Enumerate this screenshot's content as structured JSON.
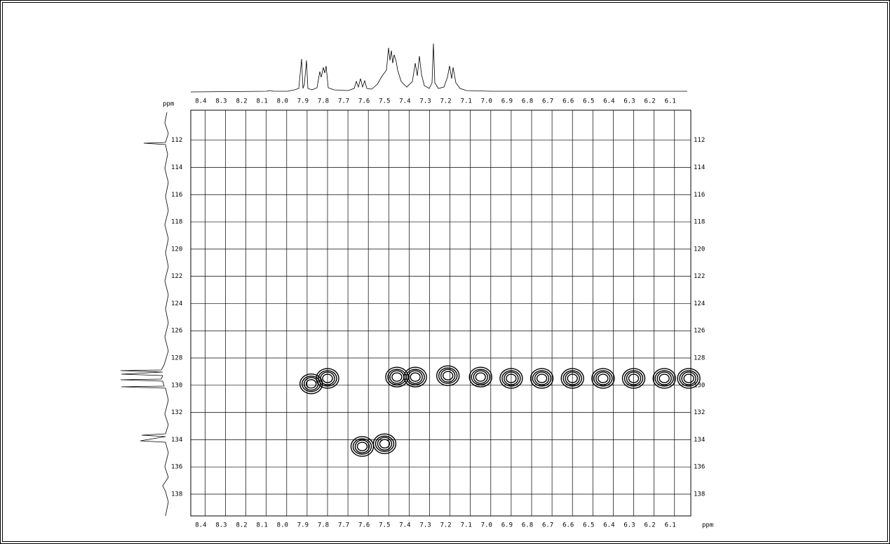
{
  "chart_data": {
    "type": "contour",
    "x_label": "ppm",
    "y_label": "ppm",
    "xlim": [
      8.47,
      6.02
    ],
    "xticks": [
      {
        "value": 8.4,
        "label": "8.4"
      },
      {
        "value": 8.3,
        "label": "8.3"
      },
      {
        "value": 8.2,
        "label": "8.2"
      },
      {
        "value": 8.1,
        "label": "8.1"
      },
      {
        "value": 8.0,
        "label": "8.0"
      },
      {
        "value": 7.9,
        "label": "7.9"
      },
      {
        "value": 7.8,
        "label": "7.8"
      },
      {
        "value": 7.7,
        "label": "7.7"
      },
      {
        "value": 7.6,
        "label": "7.6"
      },
      {
        "value": 7.5,
        "label": "7.5"
      },
      {
        "value": 7.4,
        "label": "7.4"
      },
      {
        "value": 7.3,
        "label": "7.3"
      },
      {
        "value": 7.2,
        "label": "7.2"
      },
      {
        "value": 7.1,
        "label": "7.1"
      },
      {
        "value": 7.0,
        "label": "7.0"
      },
      {
        "value": 6.9,
        "label": "6.9"
      },
      {
        "value": 6.8,
        "label": "6.8"
      },
      {
        "value": 6.7,
        "label": "6.7"
      },
      {
        "value": 6.6,
        "label": "6.6"
      },
      {
        "value": 6.5,
        "label": "6.5"
      },
      {
        "value": 6.4,
        "label": "6.4"
      },
      {
        "value": 6.3,
        "label": "6.3"
      },
      {
        "value": 6.2,
        "label": "6.2"
      },
      {
        "value": 6.1,
        "label": "6.1"
      }
    ],
    "ylim": [
      109.8,
      139.6
    ],
    "yticks": [
      112,
      114,
      116,
      118,
      120,
      122,
      124,
      126,
      128,
      130,
      132,
      134,
      136,
      138
    ],
    "grid": true,
    "color": "#000000",
    "x": [
      7.88,
      7.8,
      7.46,
      7.37,
      7.21,
      7.05,
      6.9,
      6.75,
      6.6,
      6.45,
      6.3,
      6.15,
      6.03,
      7.63,
      7.52
    ],
    "values": [
      129.9,
      129.5,
      129.4,
      129.4,
      129.3,
      129.4,
      129.5,
      129.5,
      129.5,
      129.5,
      129.5,
      129.5,
      129.5,
      134.5,
      134.3
    ]
  }
}
